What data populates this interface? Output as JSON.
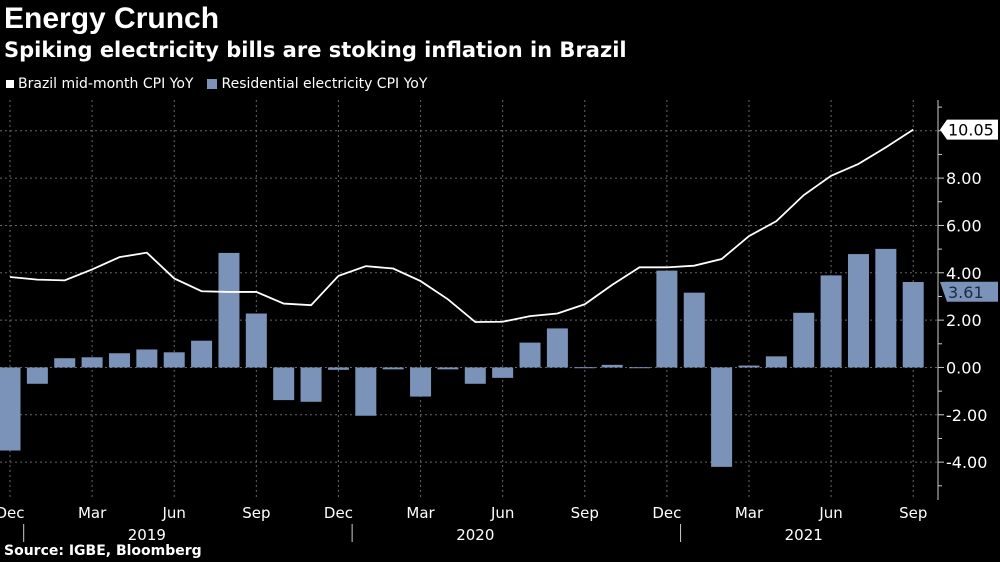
{
  "header": {
    "title": "Energy Crunch",
    "subtitle": "Spiking electricity bills are stoking inflation in Brazil"
  },
  "source": "Source: IGBE, Bloomberg",
  "chart_data": {
    "type": "bar+line",
    "title": "Energy Crunch",
    "subtitle": "Spiking electricity bills are stoking inflation in Brazil",
    "categories": [
      "2018-12",
      "2019-01",
      "2019-02",
      "2019-03",
      "2019-04",
      "2019-05",
      "2019-06",
      "2019-07",
      "2019-08",
      "2019-09",
      "2019-10",
      "2019-11",
      "2019-12",
      "2020-01",
      "2020-02",
      "2020-03",
      "2020-04",
      "2020-05",
      "2020-06",
      "2020-07",
      "2020-08",
      "2020-09",
      "2020-10",
      "2020-11",
      "2020-12",
      "2021-01",
      "2021-02",
      "2021-03",
      "2021-04",
      "2021-05",
      "2021-06",
      "2021-07",
      "2021-08",
      "2021-09"
    ],
    "series": [
      {
        "name": "Brazil mid-month CPI YoY",
        "kind": "line",
        "color": "#ffffff",
        "values": [
          3.82,
          3.71,
          3.68,
          4.14,
          4.66,
          4.85,
          3.76,
          3.22,
          3.19,
          3.19,
          2.7,
          2.63,
          3.87,
          4.28,
          4.18,
          3.65,
          2.88,
          1.92,
          1.93,
          2.17,
          2.28,
          2.67,
          3.49,
          4.23,
          4.23,
          4.3,
          4.58,
          5.55,
          6.18,
          7.28,
          8.1,
          8.6,
          9.3,
          10.05
        ],
        "last_label": "10.05"
      },
      {
        "name": "Residential electricity CPI YoY",
        "kind": "bar",
        "color": "#7b93b9",
        "values": [
          -3.51,
          -0.69,
          0.39,
          0.43,
          0.6,
          0.76,
          0.64,
          1.13,
          4.84,
          2.28,
          -1.38,
          -1.45,
          -0.1,
          -2.04,
          -0.08,
          -1.23,
          -0.08,
          -0.69,
          -0.44,
          1.05,
          1.65,
          0.01,
          0.11,
          0.01,
          4.09,
          3.16,
          -4.2,
          0.08,
          0.47,
          2.31,
          3.89,
          4.79,
          5.01,
          3.61
        ],
        "last_label": "3.61"
      }
    ],
    "yticks": [
      "-4.00",
      "-2.00",
      "0.00",
      "2.00",
      "4.00",
      "6.00",
      "8.00"
    ],
    "ytick_values": [
      -4,
      -2,
      0,
      2,
      4,
      6,
      8
    ],
    "ylim": [
      -5.6,
      11.3
    ],
    "y_axis_side": "right",
    "xtick_labels": [
      {
        "month": "2018-12",
        "label": "Dec"
      },
      {
        "month": "2019-03",
        "label": "Mar"
      },
      {
        "month": "2019-06",
        "label": "Jun"
      },
      {
        "month": "2019-09",
        "label": "Sep"
      },
      {
        "month": "2019-12",
        "label": "Dec"
      },
      {
        "month": "2020-03",
        "label": "Mar"
      },
      {
        "month": "2020-06",
        "label": "Jun"
      },
      {
        "month": "2020-09",
        "label": "Sep"
      },
      {
        "month": "2020-12",
        "label": "Dec"
      },
      {
        "month": "2021-03",
        "label": "Mar"
      },
      {
        "month": "2021-06",
        "label": "Jun"
      },
      {
        "month": "2021-09",
        "label": "Sep"
      }
    ],
    "year_labels": [
      {
        "month": "2019-05",
        "label": "2019"
      },
      {
        "month": "2020-05",
        "label": "2020"
      },
      {
        "month": "2021-05",
        "label": "2021"
      }
    ],
    "grid": true,
    "legend": "top-left"
  }
}
